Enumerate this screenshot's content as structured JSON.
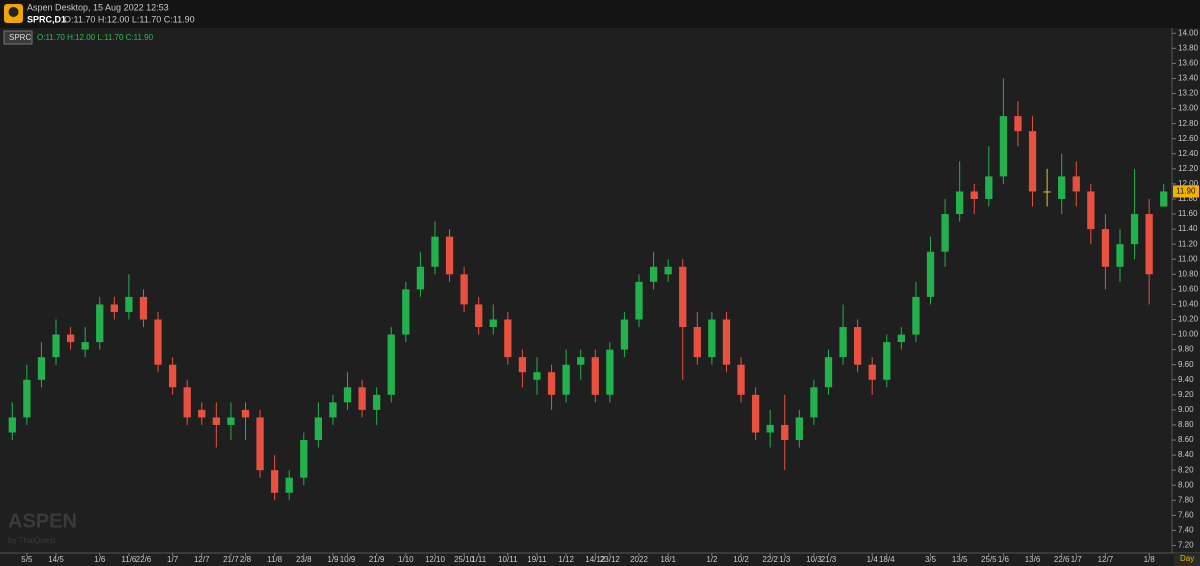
{
  "window": {
    "title": "Aspen Desktop, 15 Aug 2022 12:53",
    "symbol": "SPRC,D1",
    "ohlc": "O:11.70 H:12.00 L:11.70 C:11.90",
    "tag": "SPRC",
    "legend_ohlc": "O:11.70  H:12.00  L:11.70  C:11.90",
    "period": "Day",
    "watermark": "ASPEN",
    "watermark_sub": "by ThaiQuest"
  },
  "chart_data": {
    "type": "candlestick",
    "up_color": "#22b14c",
    "down_color": "#e8513f",
    "categories": [
      null,
      "5/5",
      null,
      "14/5",
      null,
      null,
      "1/6",
      null,
      "11/6",
      "22/6",
      null,
      "1/7",
      null,
      "12/7",
      null,
      "21/7",
      "2/8",
      null,
      "11/8",
      null,
      "23/8",
      null,
      "1/9",
      "10/9",
      null,
      "21/9",
      null,
      "1/10",
      null,
      "12/10",
      null,
      "25/10",
      "1/11",
      null,
      "10/11",
      null,
      "19/11",
      null,
      "1/12",
      null,
      "14/12",
      "23/12",
      null,
      "2022",
      null,
      "18/1",
      null,
      null,
      "1/2",
      null,
      "10/2",
      null,
      "22/2",
      "1/3",
      null,
      "10/3",
      "21/3",
      null,
      null,
      "1/4",
      "18/4",
      null,
      null,
      "3/5",
      null,
      "13/5",
      null,
      "25/5",
      "1/6",
      null,
      "13/6",
      null,
      "22/6",
      "1/7",
      null,
      "12/7",
      null,
      null,
      "1/8",
      null
    ],
    "open": [
      8.7,
      8.9,
      9.4,
      9.7,
      10.0,
      9.8,
      9.9,
      10.4,
      10.3,
      10.5,
      10.2,
      9.6,
      9.3,
      9.0,
      8.9,
      8.8,
      9.0,
      8.9,
      8.2,
      7.9,
      8.1,
      8.6,
      8.9,
      9.1,
      9.3,
      9.0,
      9.2,
      10.0,
      10.6,
      10.9,
      11.3,
      10.8,
      10.4,
      10.1,
      10.2,
      9.7,
      9.4,
      9.5,
      9.2,
      9.6,
      9.7,
      9.2,
      9.8,
      10.2,
      10.7,
      10.8,
      10.9,
      10.1,
      9.7,
      10.2,
      9.6,
      9.2,
      8.7,
      8.8,
      8.6,
      8.9,
      9.3,
      9.7,
      10.1,
      9.6,
      9.4,
      9.9,
      10.0,
      10.5,
      11.1,
      11.6,
      11.9,
      11.8,
      12.1,
      12.9,
      12.7,
      11.9,
      11.8,
      12.1,
      11.9,
      11.4,
      10.9,
      11.2,
      11.6,
      11.7
    ],
    "high": [
      9.1,
      9.6,
      9.9,
      10.2,
      10.1,
      10.1,
      10.5,
      10.5,
      10.8,
      10.6,
      10.3,
      9.7,
      9.4,
      9.1,
      9.1,
      9.1,
      9.1,
      9.0,
      8.4,
      8.2,
      8.7,
      9.1,
      9.2,
      9.5,
      9.4,
      9.3,
      10.1,
      10.7,
      11.1,
      11.5,
      11.4,
      10.9,
      10.5,
      10.4,
      10.3,
      9.8,
      9.7,
      9.6,
      9.8,
      9.8,
      9.8,
      9.9,
      10.3,
      10.8,
      11.1,
      11.0,
      11.0,
      10.3,
      10.3,
      10.3,
      9.7,
      9.3,
      9.0,
      9.2,
      9.0,
      9.4,
      9.8,
      10.4,
      10.2,
      9.7,
      10.0,
      10.1,
      10.7,
      11.3,
      11.8,
      12.3,
      12.0,
      12.5,
      13.4,
      13.1,
      12.9,
      12.2,
      12.4,
      12.3,
      12.0,
      11.6,
      11.4,
      12.2,
      11.8,
      12.0
    ],
    "low": [
      8.6,
      8.8,
      9.3,
      9.6,
      9.8,
      9.7,
      9.8,
      10.2,
      10.2,
      10.1,
      9.5,
      9.2,
      8.8,
      8.8,
      8.5,
      8.6,
      8.6,
      8.1,
      7.8,
      7.8,
      8.0,
      8.5,
      8.8,
      9.0,
      8.9,
      8.8,
      9.1,
      9.9,
      10.5,
      10.8,
      10.7,
      10.3,
      10.0,
      10.0,
      9.6,
      9.3,
      9.2,
      9.0,
      9.1,
      9.4,
      9.1,
      9.1,
      9.7,
      10.1,
      10.6,
      10.7,
      9.4,
      9.6,
      9.6,
      9.5,
      9.1,
      8.6,
      8.5,
      8.2,
      8.5,
      8.8,
      9.2,
      9.6,
      9.5,
      9.2,
      9.3,
      9.8,
      9.9,
      10.4,
      10.9,
      11.5,
      11.6,
      11.7,
      12.0,
      12.5,
      11.7,
      11.7,
      11.6,
      11.7,
      11.2,
      10.6,
      10.7,
      11.0,
      10.4,
      11.7
    ],
    "close": [
      8.9,
      9.4,
      9.7,
      10.0,
      9.9,
      9.9,
      10.4,
      10.3,
      10.5,
      10.2,
      9.6,
      9.3,
      8.9,
      8.9,
      8.8,
      8.9,
      8.9,
      8.2,
      7.9,
      8.1,
      8.6,
      8.9,
      9.1,
      9.3,
      9.0,
      9.2,
      10.0,
      10.6,
      10.9,
      11.3,
      10.8,
      10.4,
      10.1,
      10.2,
      9.7,
      9.5,
      9.5,
      9.2,
      9.6,
      9.7,
      9.2,
      9.8,
      10.2,
      10.7,
      10.9,
      10.9,
      10.1,
      9.7,
      10.2,
      9.6,
      9.2,
      8.7,
      8.8,
      8.6,
      8.9,
      9.3,
      9.7,
      10.1,
      9.6,
      9.4,
      9.9,
      10.0,
      10.5,
      11.1,
      11.6,
      11.9,
      11.8,
      12.1,
      12.9,
      12.7,
      11.9,
      11.9,
      12.1,
      11.9,
      11.4,
      10.9,
      11.2,
      11.6,
      10.8,
      11.9
    ],
    "last_label": "11.90",
    "ylim": [
      7.1,
      14.07
    ],
    "yticks": [
      {
        "value": 7.2,
        "label": "7.20"
      },
      {
        "value": 7.4,
        "label": "7.40"
      },
      {
        "value": 7.6,
        "label": "7.60"
      },
      {
        "value": 7.8,
        "label": "7.80"
      },
      {
        "value": 8.0,
        "label": "8.00"
      },
      {
        "value": 8.2,
        "label": "8.20"
      },
      {
        "value": 8.4,
        "label": "8.40"
      },
      {
        "value": 8.6,
        "label": "8.60"
      },
      {
        "value": 8.8,
        "label": "8.80"
      },
      {
        "value": 9.0,
        "label": "9.00"
      },
      {
        "value": 9.2,
        "label": "9.20"
      },
      {
        "value": 9.4,
        "label": "9.40"
      },
      {
        "value": 9.6,
        "label": "9.60"
      },
      {
        "value": 9.8,
        "label": "9.80"
      },
      {
        "value": 10.0,
        "label": "10.00"
      },
      {
        "value": 10.2,
        "label": "10.20"
      },
      {
        "value": 10.4,
        "label": "10.40"
      },
      {
        "value": 10.6,
        "label": "10.60"
      },
      {
        "value": 10.8,
        "label": "10.80"
      },
      {
        "value": 11.0,
        "label": "11.00"
      },
      {
        "value": 11.2,
        "label": "11.20"
      },
      {
        "value": 11.4,
        "label": "11.40"
      },
      {
        "value": 11.6,
        "label": "11.60"
      },
      {
        "value": 11.8,
        "label": "11.80"
      },
      {
        "value": 12.0,
        "label": "12.00"
      },
      {
        "value": 12.2,
        "label": "12.20"
      },
      {
        "value": 12.4,
        "label": "12.40"
      },
      {
        "value": 12.6,
        "label": "12.60"
      },
      {
        "value": 12.8,
        "label": "12.80"
      },
      {
        "value": 13.0,
        "label": "13.00"
      },
      {
        "value": 13.2,
        "label": "13.20"
      },
      {
        "value": 13.4,
        "label": "13.40"
      },
      {
        "value": 13.6,
        "label": "13.60"
      },
      {
        "value": 13.8,
        "label": "13.80"
      },
      {
        "value": 14.0,
        "label": "14.00"
      }
    ]
  }
}
